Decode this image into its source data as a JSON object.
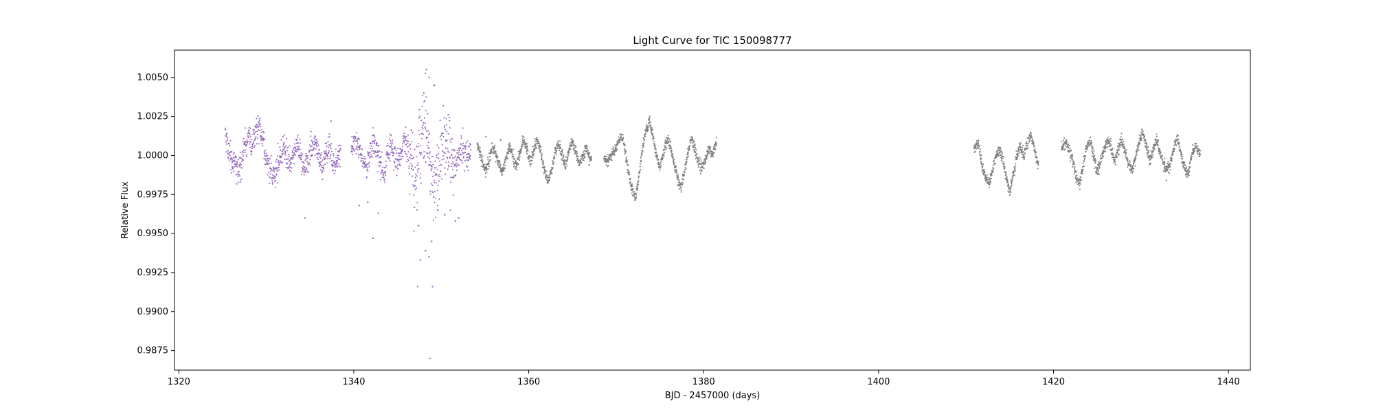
{
  "chart_data": {
    "type": "scatter",
    "title": "Light Curve for TIC 150098777",
    "xlabel": "BJD - 2457000 (days)",
    "ylabel": "Relative Flux",
    "xlim": [
      1319.5,
      1442.5
    ],
    "ylim": [
      0.98625,
      1.00675
    ],
    "x_ticks": [
      1320,
      1340,
      1360,
      1380,
      1400,
      1420,
      1440
    ],
    "x_tick_labels": [
      "1320",
      "1340",
      "1360",
      "1380",
      "1400",
      "1420",
      "1440"
    ],
    "y_ticks": [
      0.9875,
      0.99,
      0.9925,
      0.995,
      0.9975,
      1.0,
      1.0025,
      1.005
    ],
    "y_tick_labels": [
      "0.9875",
      "0.9900",
      "0.9925",
      "0.9950",
      "0.9975",
      "1.0000",
      "1.0025",
      "1.0050"
    ],
    "grid": false,
    "legend": "none",
    "series": [
      {
        "color": "#9467bd",
        "segments": [
          [
            1325.3,
            1338.5
          ],
          [
            1339.7,
            1353.4
          ]
        ],
        "points": [
          [
            1325.3,
            1.0015
          ],
          [
            1325.6,
            1.0005
          ],
          [
            1326.0,
            1.0
          ],
          [
            1326.4,
            0.9995
          ],
          [
            1326.8,
            0.999
          ],
          [
            1327.2,
            0.9998
          ],
          [
            1327.6,
            1.0008
          ],
          [
            1328.0,
            1.0012
          ],
          [
            1328.4,
            1.0005
          ],
          [
            1328.8,
            1.0015
          ],
          [
            1329.2,
            1.002
          ],
          [
            1329.6,
            1.001
          ],
          [
            1330.0,
            0.9998
          ],
          [
            1330.4,
            0.999
          ],
          [
            1330.8,
            0.9985
          ],
          [
            1331.2,
            0.9992
          ],
          [
            1331.6,
            1.0
          ],
          [
            1332.0,
            1.0005
          ],
          [
            1332.4,
            1.0
          ],
          [
            1332.8,
            0.9995
          ],
          [
            1333.2,
            1.0003
          ],
          [
            1333.6,
            1.0008
          ],
          [
            1334.0,
            0.9998
          ],
          [
            1334.4,
            0.999
          ],
          [
            1334.8,
            0.9995
          ],
          [
            1335.2,
            1.0005
          ],
          [
            1335.6,
            1.0008
          ],
          [
            1336.0,
            0.9998
          ],
          [
            1336.4,
            0.9992
          ],
          [
            1336.8,
            1.0
          ],
          [
            1337.2,
            1.0006
          ],
          [
            1337.6,
            0.9996
          ],
          [
            1338.0,
            0.9994
          ],
          [
            1338.4,
            1.0005
          ],
          [
            1339.8,
            1.0005
          ],
          [
            1340.2,
            1.0012
          ],
          [
            1340.6,
            1.0005
          ],
          [
            1341.0,
            0.9998
          ],
          [
            1341.4,
            0.9992
          ],
          [
            1341.8,
            1.0
          ],
          [
            1342.2,
            1.001
          ],
          [
            1342.6,
            1.0005
          ],
          [
            1343.0,
            0.9996
          ],
          [
            1343.4,
            0.999
          ],
          [
            1343.8,
            1.0
          ],
          [
            1344.2,
            1.0008
          ],
          [
            1344.6,
            1.0002
          ],
          [
            1345.0,
            0.9996
          ],
          [
            1345.4,
            1.0002
          ],
          [
            1345.8,
            1.001
          ],
          [
            1346.2,
            1.0004
          ],
          [
            1346.6,
            0.9994
          ],
          [
            1347.0,
            0.9985
          ],
          [
            1347.4,
            0.9996
          ],
          [
            1347.8,
            1.001
          ],
          [
            1348.2,
            1.002
          ],
          [
            1348.6,
            1.0005
          ],
          [
            1349.0,
            0.999
          ],
          [
            1349.4,
            0.9985
          ],
          [
            1349.8,
            0.9995
          ],
          [
            1350.2,
            1.0005
          ],
          [
            1350.6,
            1.0008
          ],
          [
            1351.0,
            0.9996
          ],
          [
            1351.4,
            0.999
          ],
          [
            1351.8,
            0.9998
          ],
          [
            1352.2,
            1.0006
          ],
          [
            1352.6,
            1.0002
          ],
          [
            1353.0,
            0.9998
          ],
          [
            1353.4,
            1.0002
          ]
        ],
        "outliers": [
          [
            1334.4,
            0.996
          ],
          [
            1342.2,
            0.9947
          ],
          [
            1347.3,
            0.9916
          ],
          [
            1347.6,
            0.9933
          ],
          [
            1348.2,
            0.9939
          ],
          [
            1348.6,
            0.9935
          ],
          [
            1349.0,
            0.9916
          ],
          [
            1348.7,
            0.987
          ],
          [
            1348.3,
            1.0055
          ],
          [
            1348.6,
            1.005
          ],
          [
            1348.0,
            1.004
          ],
          [
            1349.2,
            1.0045
          ],
          [
            1347.4,
            0.9955
          ],
          [
            1349.6,
            0.9965
          ],
          [
            1350.4,
            0.9962
          ],
          [
            1351.6,
            0.9958
          ],
          [
            1352.0,
            0.996
          ],
          [
            1337.4,
            1.0022
          ],
          [
            1341.6,
            0.997
          ],
          [
            1340.6,
            0.9968
          ],
          [
            1342.8,
            0.9963
          ],
          [
            1350.8,
            1.0026
          ],
          [
            1346.6,
            1.0016
          ],
          [
            1348.9,
            0.9945
          ]
        ]
      },
      {
        "color": "#7f7f7f",
        "segments": [
          [
            1354.1,
            1367.2
          ],
          [
            1368.6,
            1381.5
          ],
          [
            1410.9,
            1418.3
          ],
          [
            1420.9,
            1436.8
          ]
        ],
        "points": [
          [
            1354.1,
            1.0008
          ],
          [
            1354.6,
            0.9998
          ],
          [
            1355.0,
            0.999
          ],
          [
            1355.4,
            0.9995
          ],
          [
            1355.8,
            1.0006
          ],
          [
            1356.2,
            1.0002
          ],
          [
            1356.6,
            0.9994
          ],
          [
            1357.0,
            0.999
          ],
          [
            1357.4,
            0.9998
          ],
          [
            1357.8,
            1.0006
          ],
          [
            1358.2,
            1.0
          ],
          [
            1358.6,
            0.9993
          ],
          [
            1359.0,
            1.0002
          ],
          [
            1359.4,
            1.001
          ],
          [
            1359.8,
            1.0004
          ],
          [
            1360.2,
            0.9996
          ],
          [
            1360.6,
            1.0005
          ],
          [
            1361.0,
            1.001
          ],
          [
            1361.4,
            1.0002
          ],
          [
            1361.8,
            0.999
          ],
          [
            1362.2,
            0.9984
          ],
          [
            1362.6,
            0.999
          ],
          [
            1363.0,
            1.0002
          ],
          [
            1363.4,
            1.0008
          ],
          [
            1363.8,
            1.0
          ],
          [
            1364.2,
            0.9994
          ],
          [
            1364.6,
            1.0002
          ],
          [
            1365.0,
            1.001
          ],
          [
            1365.4,
            1.0002
          ],
          [
            1365.8,
            0.9995
          ],
          [
            1366.2,
            1.0
          ],
          [
            1366.6,
            1.0005
          ],
          [
            1367.0,
            0.9998
          ],
          [
            1368.6,
            0.9998
          ],
          [
            1369.0,
            0.9996
          ],
          [
            1369.4,
            1.0
          ],
          [
            1369.8,
            1.0003
          ],
          [
            1370.2,
            1.0008
          ],
          [
            1370.6,
            1.0012
          ],
          [
            1371.0,
            1.0004
          ],
          [
            1371.4,
            0.999
          ],
          [
            1371.8,
            0.9978
          ],
          [
            1372.2,
            0.9972
          ],
          [
            1372.6,
            0.9986
          ],
          [
            1373.0,
            1.0004
          ],
          [
            1373.4,
            1.0016
          ],
          [
            1373.8,
            1.0022
          ],
          [
            1374.2,
            1.0012
          ],
          [
            1374.6,
            1.0
          ],
          [
            1375.0,
            0.9992
          ],
          [
            1375.4,
            1.0002
          ],
          [
            1375.8,
            1.001
          ],
          [
            1376.2,
            1.0006
          ],
          [
            1376.6,
            0.9995
          ],
          [
            1377.0,
            0.9986
          ],
          [
            1377.4,
            0.998
          ],
          [
            1377.8,
            0.999
          ],
          [
            1378.2,
            1.0002
          ],
          [
            1378.6,
            1.0012
          ],
          [
            1379.0,
            1.0004
          ],
          [
            1379.4,
            0.9995
          ],
          [
            1379.8,
            0.9992
          ],
          [
            1380.2,
            0.9998
          ],
          [
            1380.6,
            1.0004
          ],
          [
            1381.0,
            1.0
          ],
          [
            1381.4,
            1.0008
          ],
          [
            1411.0,
            1.0006
          ],
          [
            1411.4,
            1.0008
          ],
          [
            1411.8,
            0.9995
          ],
          [
            1412.2,
            0.9986
          ],
          [
            1412.6,
            0.9982
          ],
          [
            1413.0,
            0.999
          ],
          [
            1413.4,
            1.0
          ],
          [
            1413.8,
            1.0004
          ],
          [
            1414.2,
            0.9998
          ],
          [
            1414.6,
            0.9986
          ],
          [
            1415.0,
            0.9976
          ],
          [
            1415.4,
            0.9988
          ],
          [
            1415.8,
            1.0
          ],
          [
            1416.2,
            1.0006
          ],
          [
            1416.6,
            1.0
          ],
          [
            1417.0,
            1.0008
          ],
          [
            1417.4,
            1.0014
          ],
          [
            1417.8,
            1.0005
          ],
          [
            1418.2,
            0.9995
          ],
          [
            1421.0,
            1.0006
          ],
          [
            1421.4,
            1.0008
          ],
          [
            1421.8,
            1.0004
          ],
          [
            1422.2,
            0.9998
          ],
          [
            1422.6,
            0.9985
          ],
          [
            1423.0,
            0.9982
          ],
          [
            1423.4,
            0.9994
          ],
          [
            1423.8,
            1.0006
          ],
          [
            1424.2,
            1.001
          ],
          [
            1424.6,
            1.0
          ],
          [
            1425.0,
            0.999
          ],
          [
            1425.4,
            0.9996
          ],
          [
            1425.8,
            1.0004
          ],
          [
            1426.2,
            1.001
          ],
          [
            1426.6,
            1.0004
          ],
          [
            1427.0,
            0.9996
          ],
          [
            1427.4,
            1.0004
          ],
          [
            1427.8,
            1.001
          ],
          [
            1428.2,
            1.0002
          ],
          [
            1428.6,
            0.9994
          ],
          [
            1429.0,
            0.999
          ],
          [
            1429.4,
            1.0
          ],
          [
            1429.8,
            1.0008
          ],
          [
            1430.2,
            1.0014
          ],
          [
            1430.6,
            1.0006
          ],
          [
            1431.0,
            0.9996
          ],
          [
            1431.4,
            1.0004
          ],
          [
            1431.8,
            1.001
          ],
          [
            1432.2,
            1.0002
          ],
          [
            1432.6,
            0.9995
          ],
          [
            1433.0,
            0.999
          ],
          [
            1433.4,
            0.9996
          ],
          [
            1433.8,
            1.0006
          ],
          [
            1434.2,
            1.001
          ],
          [
            1434.6,
            1.0
          ],
          [
            1435.0,
            0.9992
          ],
          [
            1435.4,
            0.9988
          ],
          [
            1435.8,
            1.0
          ],
          [
            1436.2,
            1.0006
          ],
          [
            1436.6,
            1.0002
          ]
        ],
        "outliers": [
          [
            1425.2,
            0.9988
          ],
          [
            1432.9,
            0.9984
          ],
          [
            1355.1,
            1.0012
          ],
          [
            1356.8,
            1.001
          ]
        ]
      }
    ]
  }
}
